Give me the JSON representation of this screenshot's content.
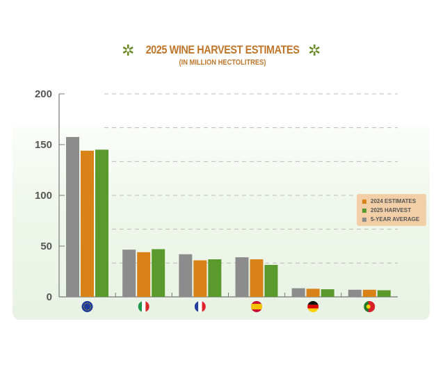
{
  "chart_data": {
    "type": "bar",
    "title": "2025 WINE HARVEST  ESTIMATES",
    "subtitle": "(IN MILLION HECTOLITRES)",
    "categories": [
      "EU",
      "Italy",
      "France",
      "Spain",
      "Germany",
      "Portugal"
    ],
    "category_icons": [
      "eu-flag-icon",
      "italy-flag-icon",
      "france-flag-icon",
      "spain-flag-icon",
      "germany-flag-icon",
      "portugal-flag-icon"
    ],
    "series": [
      {
        "name": "5-YEAR AVERAGE",
        "color": "#8c8c8c",
        "values": [
          157.5,
          46.5,
          42,
          39,
          8.5,
          7
        ]
      },
      {
        "name": "2024 ESTIMATES",
        "color": "#d98218",
        "values": [
          144,
          44,
          36,
          37,
          8,
          7
        ]
      },
      {
        "name": "2025 HARVEST",
        "color": "#5a9a2c",
        "values": [
          145,
          47,
          37,
          31.5,
          7.5,
          6.5
        ]
      }
    ],
    "legend_order": [
      "2024 ESTIMATES",
      "2025 HARVEST",
      "5-YEAR AVERAGE"
    ],
    "yticks": [
      "0",
      "50",
      "100",
      "150",
      "200"
    ],
    "ylim": [
      0,
      200
    ],
    "grid": "dashed horizontal",
    "legend_position": "right"
  }
}
